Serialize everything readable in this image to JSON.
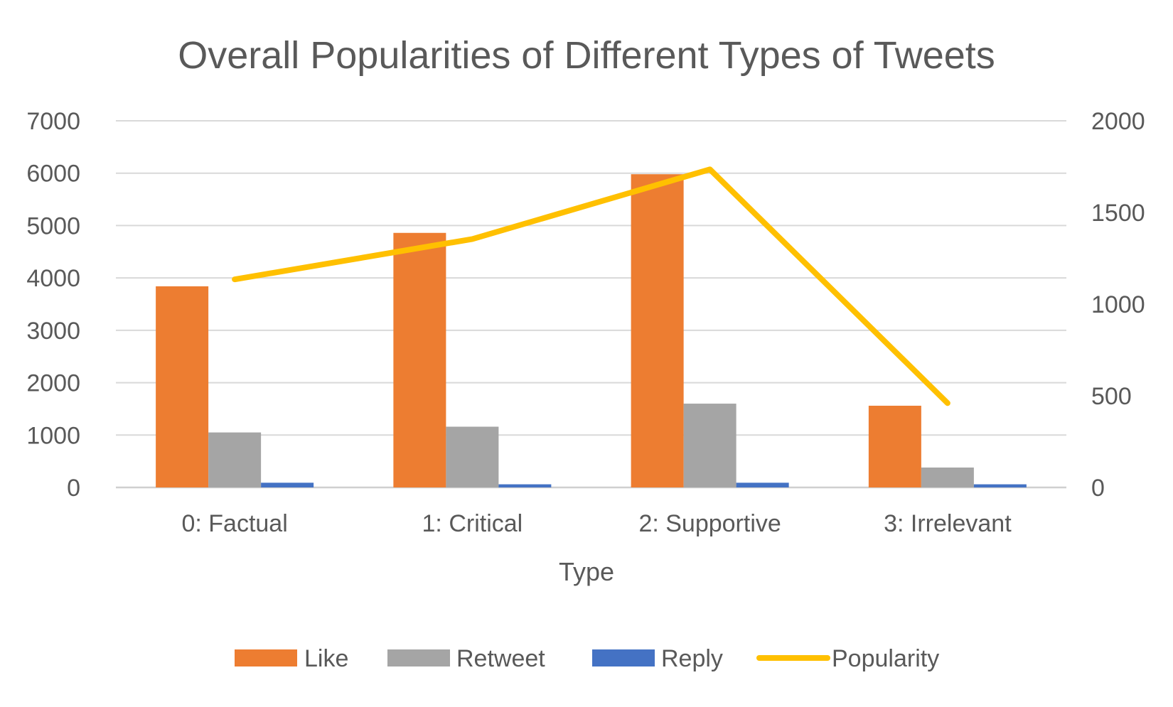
{
  "chart_data": {
    "type": "bar",
    "title": "Overall Popularities of Different Types of Tweets",
    "xlabel": "Type",
    "ylabel": "",
    "y2label": "",
    "categories": [
      "0: Factual",
      "1: Critical",
      "2: Supportive",
      "3: Irrelevant"
    ],
    "ylim": [
      0,
      7000
    ],
    "y_ticks": [
      "0",
      "1000",
      "2000",
      "3000",
      "4000",
      "5000",
      "6000",
      "7000"
    ],
    "y2lim": [
      0,
      2000
    ],
    "y2_ticks": [
      "0",
      "500",
      "1000",
      "1500",
      "2000"
    ],
    "grid": true,
    "legend_position": "bottom",
    "series": [
      {
        "name": "Like",
        "type": "bar",
        "axis": "left",
        "color": "#ED7D31",
        "values": [
          3840,
          4860,
          5980,
          1560
        ]
      },
      {
        "name": "Retweet",
        "type": "bar",
        "axis": "left",
        "color": "#A5A5A5",
        "values": [
          1050,
          1160,
          1600,
          380
        ]
      },
      {
        "name": "Reply",
        "type": "bar",
        "axis": "left",
        "color": "#4472C4",
        "values": [
          90,
          60,
          90,
          60
        ]
      },
      {
        "name": "Popularity",
        "type": "line",
        "axis": "right",
        "color": "#FFC000",
        "values": [
          1135,
          1355,
          1735,
          460
        ]
      }
    ]
  }
}
